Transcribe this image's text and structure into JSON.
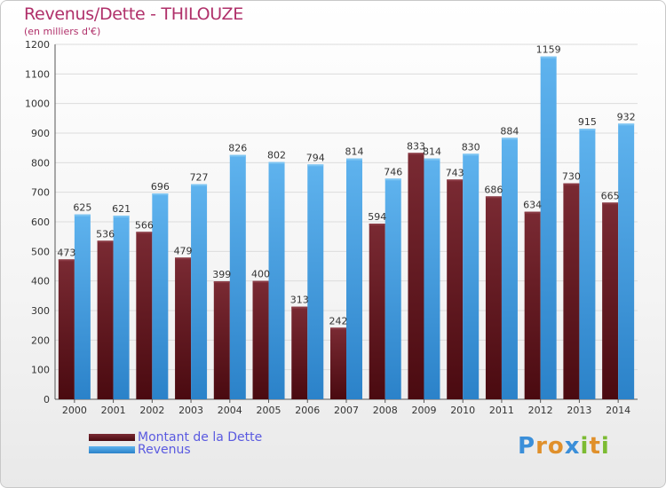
{
  "header": {
    "title": "Revenus/Dette - THILOUZE",
    "subtitle": "(en milliers d'€)"
  },
  "legend": {
    "dette_label": "Montant de la Dette",
    "revenus_label": "Revenus"
  },
  "logo": {
    "text": "Proxiti",
    "letters": [
      "P",
      "r",
      "o",
      "x",
      "i",
      "t",
      "i"
    ],
    "colors": [
      "#3b8fd9",
      "#e0902b",
      "#e0902b",
      "#3b8fd9",
      "#7cbb32",
      "#e0902b",
      "#7cbb32"
    ]
  },
  "colors": {
    "dette": "#6b1a22",
    "revenus": "#4aa3e6",
    "title": "#b0306a"
  },
  "chart_data": {
    "type": "bar",
    "title": "Revenus/Dette - THILOUZE",
    "subtitle": "(en milliers d'€)",
    "categories": [
      "2000",
      "2001",
      "2002",
      "2003",
      "2004",
      "2005",
      "2006",
      "2007",
      "2008",
      "2009",
      "2010",
      "2011",
      "2012",
      "2013",
      "2014"
    ],
    "series": [
      {
        "name": "Montant de la Dette",
        "values": [
          473,
          536,
          566,
          479,
          399,
          400,
          313,
          242,
          594,
          833,
          743,
          686,
          634,
          730,
          665
        ]
      },
      {
        "name": "Revenus",
        "values": [
          625,
          621,
          696,
          727,
          826,
          802,
          794,
          814,
          746,
          814,
          830,
          884,
          1159,
          915,
          932
        ]
      }
    ],
    "ylim": [
      0,
      1200
    ],
    "yticks": [
      0,
      100,
      200,
      300,
      400,
      500,
      600,
      700,
      800,
      900,
      1000,
      1100,
      1200
    ],
    "grid": true,
    "legend_position": "bottom-left"
  }
}
